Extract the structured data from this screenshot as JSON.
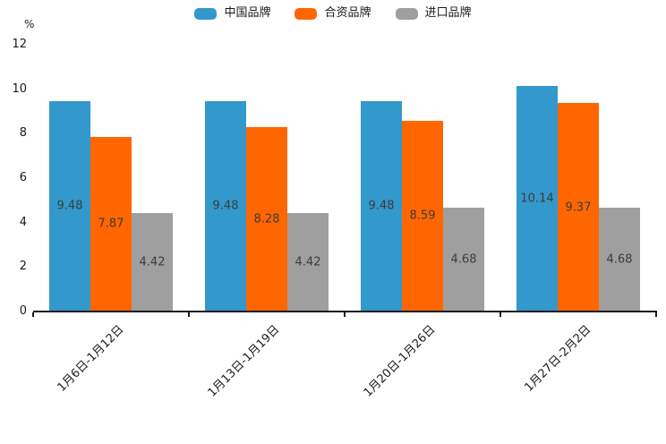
{
  "chart_data": {
    "type": "bar",
    "title": "",
    "unit_label": "%",
    "categories": [
      "1月6日-1月12日",
      "1月13日-1月19日",
      "1月20日-1月26日",
      "1月27日-2月2日"
    ],
    "series": [
      {
        "name": "中国品牌",
        "color": "#3398CC",
        "values": [
          9.48,
          9.48,
          9.48,
          10.14
        ]
      },
      {
        "name": "合资品牌",
        "color": "#FF6600",
        "values": [
          7.87,
          8.28,
          8.59,
          9.37
        ]
      },
      {
        "name": "进口品牌",
        "color": "#9F9F9F",
        "values": [
          4.42,
          4.42,
          4.68,
          4.68
        ]
      }
    ],
    "value_labels": {
      "中国品牌": [
        "9.48",
        "9.48",
        "9.48",
        "10.14"
      ],
      "合资品牌": [
        "7.87",
        "8.28",
        "8.59",
        "9.37"
      ],
      "进口品牌": [
        "4.42",
        "4.42",
        "4.68",
        "4.68"
      ]
    },
    "y_ticks": [
      0,
      2,
      4,
      6,
      8,
      10,
      12
    ],
    "ylim": [
      0,
      12
    ],
    "xlabel": "",
    "ylabel": "%",
    "grid": false,
    "legend_position": "top-center"
  }
}
